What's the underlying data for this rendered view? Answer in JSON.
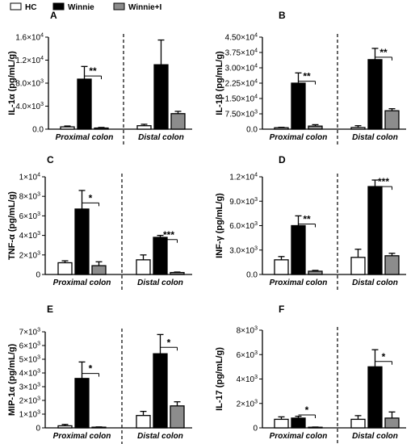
{
  "legend": {
    "items": [
      {
        "label": "HC",
        "color": "#ffffff"
      },
      {
        "label": "Winnie",
        "color": "#000000"
      },
      {
        "label": "Winnie+I",
        "color": "#8c8c8c"
      }
    ]
  },
  "chart_data": [
    {
      "type": "bar",
      "panel": "A",
      "ylabel": "IL-1α (pg/mL/g)",
      "categories": [
        "Proximal colon",
        "Distal colon"
      ],
      "ylim": [
        0,
        16000
      ],
      "yticks": [
        {
          "v": 0,
          "m": "0.0",
          "e": ""
        },
        {
          "v": 4000,
          "m": "4.0×10",
          "e": "3"
        },
        {
          "v": 8000,
          "m": "8.0×10",
          "e": "3"
        },
        {
          "v": 12000,
          "m": "1.2×10",
          "e": "4"
        },
        {
          "v": 16000,
          "m": "1.6×10",
          "e": "4"
        }
      ],
      "series": [
        {
          "name": "HC",
          "values": [
            400,
            600
          ],
          "err": [
            150,
            250
          ]
        },
        {
          "name": "Winnie",
          "values": [
            8700,
            11200
          ],
          "err": [
            2200,
            4300
          ]
        },
        {
          "name": "Winnie+I",
          "values": [
            200,
            2700
          ],
          "err": [
            100,
            400
          ]
        }
      ],
      "significance": [
        {
          "category": 0,
          "label": "**"
        }
      ]
    },
    {
      "type": "bar",
      "panel": "B",
      "ylabel": "IL-1β (pg/mL/g)",
      "categories": [
        "Proximal colon",
        "Distal colon"
      ],
      "ylim": [
        0,
        45000
      ],
      "yticks": [
        {
          "v": 0,
          "m": "0.0",
          "e": ""
        },
        {
          "v": 7500,
          "m": "7.50×10",
          "e": "3"
        },
        {
          "v": 15000,
          "m": "1.50×10",
          "e": "4"
        },
        {
          "v": 22500,
          "m": "2.25×10",
          "e": "4"
        },
        {
          "v": 30000,
          "m": "3.00×10",
          "e": "4"
        },
        {
          "v": 37500,
          "m": "3.75×10",
          "e": "4"
        },
        {
          "v": 45000,
          "m": "4.50×10",
          "e": "4"
        }
      ],
      "series": [
        {
          "name": "HC",
          "values": [
            700,
            800
          ],
          "err": [
            200,
            900
          ]
        },
        {
          "name": "Winnie",
          "values": [
            22500,
            34000
          ],
          "err": [
            5000,
            5500
          ]
        },
        {
          "name": "Winnie+I",
          "values": [
            1500,
            9000
          ],
          "err": [
            700,
            1000
          ]
        }
      ],
      "significance": [
        {
          "category": 0,
          "label": "**"
        },
        {
          "category": 1,
          "label": "**"
        }
      ]
    },
    {
      "type": "bar",
      "panel": "C",
      "ylabel": "TNF-α (pg/mL/g)",
      "categories": [
        "Proximal colon",
        "Distal colon"
      ],
      "ylim": [
        0,
        10000
      ],
      "yticks": [
        {
          "v": 0,
          "m": "0",
          "e": ""
        },
        {
          "v": 2000,
          "m": "2×10",
          "e": "3"
        },
        {
          "v": 4000,
          "m": "4×10",
          "e": "3"
        },
        {
          "v": 6000,
          "m": "6×10",
          "e": "3"
        },
        {
          "v": 8000,
          "m": "8×10",
          "e": "3"
        },
        {
          "v": 10000,
          "m": "1×10",
          "e": "4"
        }
      ],
      "series": [
        {
          "name": "HC",
          "values": [
            1200,
            1500
          ],
          "err": [
            200,
            500
          ]
        },
        {
          "name": "Winnie",
          "values": [
            6700,
            3800
          ],
          "err": [
            1900,
            200
          ]
        },
        {
          "name": "Winnie+I",
          "values": [
            900,
            200
          ],
          "err": [
            400,
            50
          ]
        }
      ],
      "significance": [
        {
          "category": 0,
          "label": "*"
        },
        {
          "category": 1,
          "label": "***"
        }
      ]
    },
    {
      "type": "bar",
      "panel": "D",
      "ylabel": "INF-γ (pg/mL/g)",
      "categories": [
        "Proximal colon",
        "Distal colon"
      ],
      "ylim": [
        0,
        12000
      ],
      "yticks": [
        {
          "v": 0,
          "m": "0.0",
          "e": ""
        },
        {
          "v": 3000,
          "m": "3.0×10",
          "e": "3"
        },
        {
          "v": 6000,
          "m": "6.0×10",
          "e": "3"
        },
        {
          "v": 9000,
          "m": "9.0×10",
          "e": "3"
        },
        {
          "v": 12000,
          "m": "1.2×10",
          "e": "4"
        }
      ],
      "series": [
        {
          "name": "HC",
          "values": [
            1800,
            2100
          ],
          "err": [
            400,
            1000
          ]
        },
        {
          "name": "Winnie",
          "values": [
            6000,
            10800
          ],
          "err": [
            1200,
            800
          ]
        },
        {
          "name": "Winnie+I",
          "values": [
            400,
            2300
          ],
          "err": [
            100,
            300
          ]
        }
      ],
      "significance": [
        {
          "category": 0,
          "label": "**"
        },
        {
          "category": 1,
          "label": "***"
        }
      ]
    },
    {
      "type": "bar",
      "panel": "E",
      "ylabel": "MIP-1α (pg/mL/g)",
      "categories": [
        "Proximal colon",
        "Distal colon"
      ],
      "ylim": [
        0,
        7000
      ],
      "yticks": [
        {
          "v": 0,
          "m": "0",
          "e": ""
        },
        {
          "v": 1000,
          "m": "1×10",
          "e": "3"
        },
        {
          "v": 2000,
          "m": "2×10",
          "e": "3"
        },
        {
          "v": 3000,
          "m": "3×10",
          "e": "3"
        },
        {
          "v": 4000,
          "m": "4×10",
          "e": "3"
        },
        {
          "v": 5000,
          "m": "5×10",
          "e": "3"
        },
        {
          "v": 6000,
          "m": "6×10",
          "e": "3"
        },
        {
          "v": 7000,
          "m": "7×10",
          "e": "3"
        }
      ],
      "series": [
        {
          "name": "HC",
          "values": [
            150,
            900
          ],
          "err": [
            100,
            300
          ]
        },
        {
          "name": "Winnie",
          "values": [
            3600,
            5400
          ],
          "err": [
            1200,
            1400
          ]
        },
        {
          "name": "Winnie+I",
          "values": [
            50,
            1600
          ],
          "err": [
            20,
            300
          ]
        }
      ],
      "significance": [
        {
          "category": 0,
          "label": "*"
        },
        {
          "category": 1,
          "label": "*"
        }
      ]
    },
    {
      "type": "bar",
      "panel": "F",
      "ylabel": "IL-17 (pg/mL/g)",
      "categories": [
        "Proximal colon",
        "Distal colon"
      ],
      "ylim": [
        0,
        8000
      ],
      "yticks": [
        {
          "v": 0,
          "m": "0",
          "e": ""
        },
        {
          "v": 2000,
          "m": "2×10",
          "e": "3"
        },
        {
          "v": 4000,
          "m": "4×10",
          "e": "3"
        },
        {
          "v": 6000,
          "m": "6×10",
          "e": "3"
        },
        {
          "v": 8000,
          "m": "8×10",
          "e": "3"
        }
      ],
      "series": [
        {
          "name": "HC",
          "values": [
            700,
            700
          ],
          "err": [
            200,
            300
          ]
        },
        {
          "name": "Winnie",
          "values": [
            800,
            5000
          ],
          "err": [
            150,
            1400
          ]
        },
        {
          "name": "Winnie+I",
          "values": [
            50,
            800
          ],
          "err": [
            20,
            500
          ]
        }
      ],
      "significance": [
        {
          "category": 0,
          "label": "*"
        },
        {
          "category": 1,
          "label": "*"
        }
      ]
    }
  ]
}
